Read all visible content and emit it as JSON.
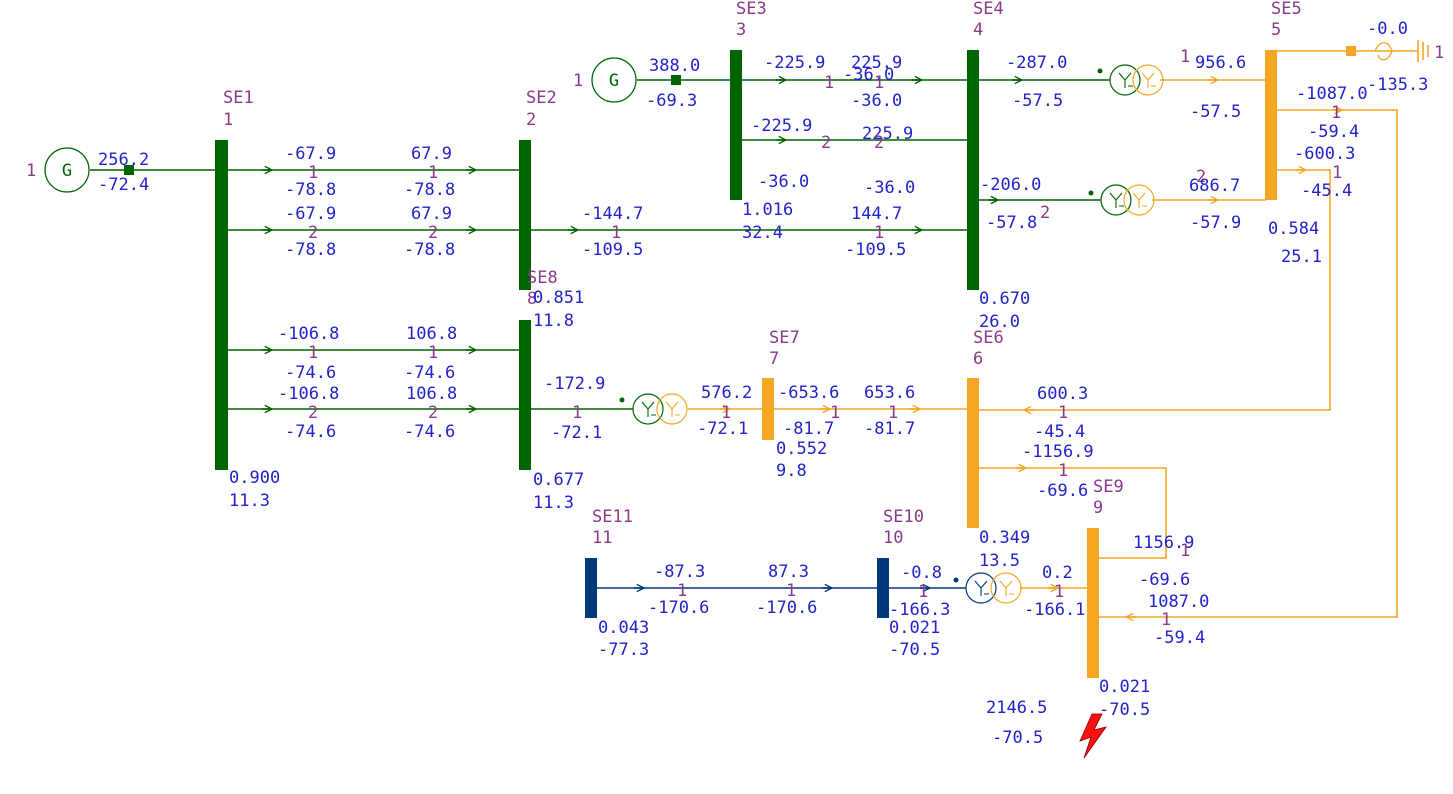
{
  "colors": {
    "green": "#006400",
    "orange": "#f5a623",
    "navy": "#003a7a",
    "value_text": "#2222cc",
    "label_text": "#8a3a8a",
    "fault": "#ff1010"
  },
  "buses": [
    {
      "id": "se1",
      "name": "SE1",
      "number": "1",
      "voltage": "0.900",
      "angle": "11.3"
    },
    {
      "id": "se2",
      "name": "SE2",
      "number": "2",
      "voltage": "",
      "angle": ""
    },
    {
      "id": "se3",
      "name": "SE3",
      "number": "3",
      "voltage": "1.016",
      "angle": "32.4"
    },
    {
      "id": "se4",
      "name": "SE4",
      "number": "4",
      "voltage": "0.670",
      "angle": "26.0"
    },
    {
      "id": "se5",
      "name": "SE5",
      "number": "5",
      "voltage": "0.584",
      "angle": "25.1"
    },
    {
      "id": "se6",
      "name": "SE6",
      "number": "6",
      "voltage": "0.349",
      "angle": "13.5"
    },
    {
      "id": "se7",
      "name": "SE7",
      "number": "7",
      "voltage": "0.552",
      "angle": "9.8"
    },
    {
      "id": "se8",
      "name": "SE8",
      "number": "8",
      "voltage": "0.677",
      "angle": "11.3"
    },
    {
      "id": "se8top",
      "name": "",
      "number": "",
      "voltage": "0.851",
      "angle": "11.8"
    },
    {
      "id": "se9",
      "name": "SE9",
      "number": "9",
      "voltage": "0.021",
      "angle": "-70.5"
    },
    {
      "id": "se10",
      "name": "SE10",
      "number": "10",
      "voltage": "0.021",
      "angle": "-70.5"
    },
    {
      "id": "se11",
      "name": "SE11",
      "number": "11",
      "voltage": "0.043",
      "angle": "-77.3"
    }
  ],
  "generators": [
    {
      "id": "gen-1",
      "label": "G",
      "unit": "1",
      "p": "256.2",
      "q": "-72.4"
    },
    {
      "id": "gen-3",
      "label": "G",
      "unit": "1",
      "p": "388.0",
      "q": "-69.3"
    }
  ],
  "branches": {
    "se1_se2_c1": {
      "p_from": "-67.9",
      "q_from": "-78.8",
      "p_to": "67.9",
      "q_to": "-78.8",
      "circuit": "1"
    },
    "se1_se2_c2": {
      "p_from": "-67.9",
      "q_from": "-78.8",
      "p_to": "67.9",
      "q_to": "-78.8",
      "circuit": "2"
    },
    "se1_se8_c1": {
      "p_from": "-106.8",
      "q_from": "-74.6",
      "p_to": "106.8",
      "q_to": "-74.6",
      "circuit": "1"
    },
    "se1_se8_c2": {
      "p_from": "-106.8",
      "q_from": "-74.6",
      "p_to": "106.8",
      "q_to": "-74.6",
      "circuit": "2"
    },
    "se2_se4": {
      "p_from": "-144.7",
      "q_from": "-109.5",
      "p_to": "144.7",
      "q_to": "-109.5",
      "circuit": "1"
    },
    "se3_se4_c1": {
      "p_from": "-225.9",
      "q_from": "-36.0",
      "p_to": "225.9",
      "q_to": "-36.0",
      "circuit": "1",
      "extra": "-36.0"
    },
    "se3_se4_c2": {
      "p_from": "-225.9",
      "q_from": "-36.0",
      "p_to": "225.9",
      "q_to": "-36.0",
      "circuit": "2"
    },
    "se4_se5_t1": {
      "p_from": "-287.0",
      "q_from": "-57.5",
      "p_to": "956.6",
      "q_to": "-57.5",
      "circuit": "1"
    },
    "se4_se5_t2": {
      "p_from": "-206.0",
      "q_from": "-57.8",
      "p_to": "686.7",
      "q_to": "-57.9",
      "circuit": "2"
    },
    "se5_se6": {
      "p_from": "-600.3",
      "q_from": "-45.4",
      "p_to": "600.3",
      "q_to": "-45.4",
      "circuit": "1"
    },
    "se5_se9": {
      "p_from": "-1087.0",
      "q_from": "-59.4",
      "p_to": "1087.0",
      "q_to": "-59.4",
      "circuit": "1"
    },
    "se8_se7_t": {
      "p_from": "-172.9",
      "q_from": "-72.1",
      "p_to": "576.2",
      "q_to": "-72.1",
      "circuit": "1"
    },
    "se7_se6": {
      "p_from": "-653.6",
      "q_from": "-81.7",
      "p_to": "653.6",
      "q_to": "-81.7",
      "circuit": "1"
    },
    "se6_se9": {
      "p_from": "-1156.9",
      "q_from": "-69.6",
      "p_to": "1156.9",
      "q_to": "-69.6",
      "circuit": "1"
    },
    "se11_se10": {
      "p_from": "-87.3",
      "q_from": "-170.6",
      "p_to": "87.3",
      "q_to": "-170.6",
      "circuit": "1"
    },
    "se10_se9_t": {
      "p_from": "-0.8",
      "q_from": "-166.3",
      "p_to": "0.2",
      "q_to": "-166.1",
      "circuit": "1"
    }
  },
  "shunt": {
    "unit": "1",
    "p": "-0.0",
    "q": "-135.3"
  },
  "fault": {
    "p": "2146.5",
    "q": "-70.5"
  }
}
